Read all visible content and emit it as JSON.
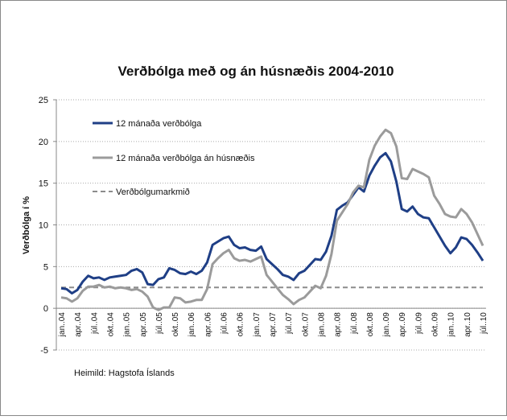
{
  "chart_data": {
    "type": "line",
    "title": "Verðbólga með og án húsnæðis 2004-2010",
    "ylabel": "Verðbólga í %",
    "source": "Heimild: Hagstofa Íslands",
    "ylim": [
      -5,
      25
    ],
    "yticks": [
      -5,
      0,
      5,
      10,
      15,
      20,
      25
    ],
    "grid": true,
    "legend": "upper-left",
    "categories": [
      "jan..04",
      null,
      null,
      "apr..04",
      null,
      null,
      "júl..04",
      null,
      null,
      "okt..04",
      null,
      null,
      "jan..05",
      null,
      null,
      "apr..05",
      null,
      null,
      "júl..05",
      null,
      null,
      "okt..05",
      null,
      null,
      "jan..06",
      null,
      null,
      "apr..06",
      null,
      null,
      "júl..06",
      null,
      null,
      "okt..06",
      null,
      null,
      "jan..07",
      null,
      null,
      "apr..07",
      null,
      null,
      "júl..07",
      null,
      null,
      "okt..07",
      null,
      null,
      "jan..08",
      null,
      null,
      "apr..08",
      null,
      null,
      "júl..08",
      null,
      null,
      "okt..08",
      null,
      null,
      "jan..09",
      null,
      null,
      "apr..09",
      null,
      null,
      "júl..09",
      null,
      null,
      "okt..09",
      null,
      null,
      "jan..10",
      null,
      null,
      "apr..10",
      null,
      null,
      "júl..10"
    ],
    "series": [
      {
        "name": "12 mánaða verðbólga",
        "color": "#1f3f86",
        "values": [
          2.4,
          2.3,
          1.8,
          2.2,
          3.2,
          3.9,
          3.6,
          3.7,
          3.4,
          3.7,
          3.8,
          3.9,
          4.0,
          4.5,
          4.7,
          4.3,
          2.9,
          2.8,
          3.5,
          3.7,
          4.8,
          4.6,
          4.2,
          4.1,
          4.4,
          4.1,
          4.5,
          5.5,
          7.6,
          8.0,
          8.4,
          8.6,
          7.6,
          7.2,
          7.3,
          7.0,
          6.9,
          7.4,
          5.9,
          5.3,
          4.7,
          4.0,
          3.8,
          3.4,
          4.2,
          4.5,
          5.2,
          5.9,
          5.8,
          6.8,
          8.7,
          11.8,
          12.3,
          12.7,
          13.6,
          14.5,
          14.0,
          15.9,
          17.1,
          18.1,
          18.6,
          17.6,
          15.2,
          11.9,
          11.6,
          12.2,
          11.3,
          10.9,
          10.8,
          9.7,
          8.6,
          7.5,
          6.6,
          7.3,
          8.5,
          8.3,
          7.6,
          6.7,
          5.7
        ]
      },
      {
        "name": "12 mánaða verðbólga án húsnæðis",
        "color": "#9b9b9b",
        "values": [
          1.3,
          1.2,
          0.8,
          1.2,
          2.1,
          2.6,
          2.6,
          2.8,
          2.5,
          2.6,
          2.4,
          2.5,
          2.4,
          2.2,
          2.3,
          2.0,
          1.4,
          0.1,
          -0.2,
          0.1,
          0.1,
          1.3,
          1.2,
          0.7,
          0.8,
          1.0,
          1.0,
          2.3,
          5.3,
          6.0,
          6.6,
          7.0,
          6.0,
          5.7,
          5.8,
          5.6,
          5.9,
          6.2,
          4.0,
          3.2,
          2.4,
          1.6,
          1.1,
          0.5,
          1.0,
          1.3,
          2.0,
          2.7,
          2.4,
          3.9,
          6.5,
          10.5,
          11.5,
          12.5,
          13.9,
          14.7,
          14.5,
          17.8,
          19.5,
          20.6,
          21.4,
          21.0,
          19.4,
          15.6,
          15.5,
          16.7,
          16.4,
          16.1,
          15.7,
          13.5,
          12.5,
          11.3,
          11.0,
          10.9,
          11.9,
          11.3,
          10.3,
          8.9,
          7.5
        ]
      }
    ],
    "target": {
      "name": "Verðbólgumarkmið",
      "value": 2.5,
      "color": "#8c8c8c"
    }
  }
}
